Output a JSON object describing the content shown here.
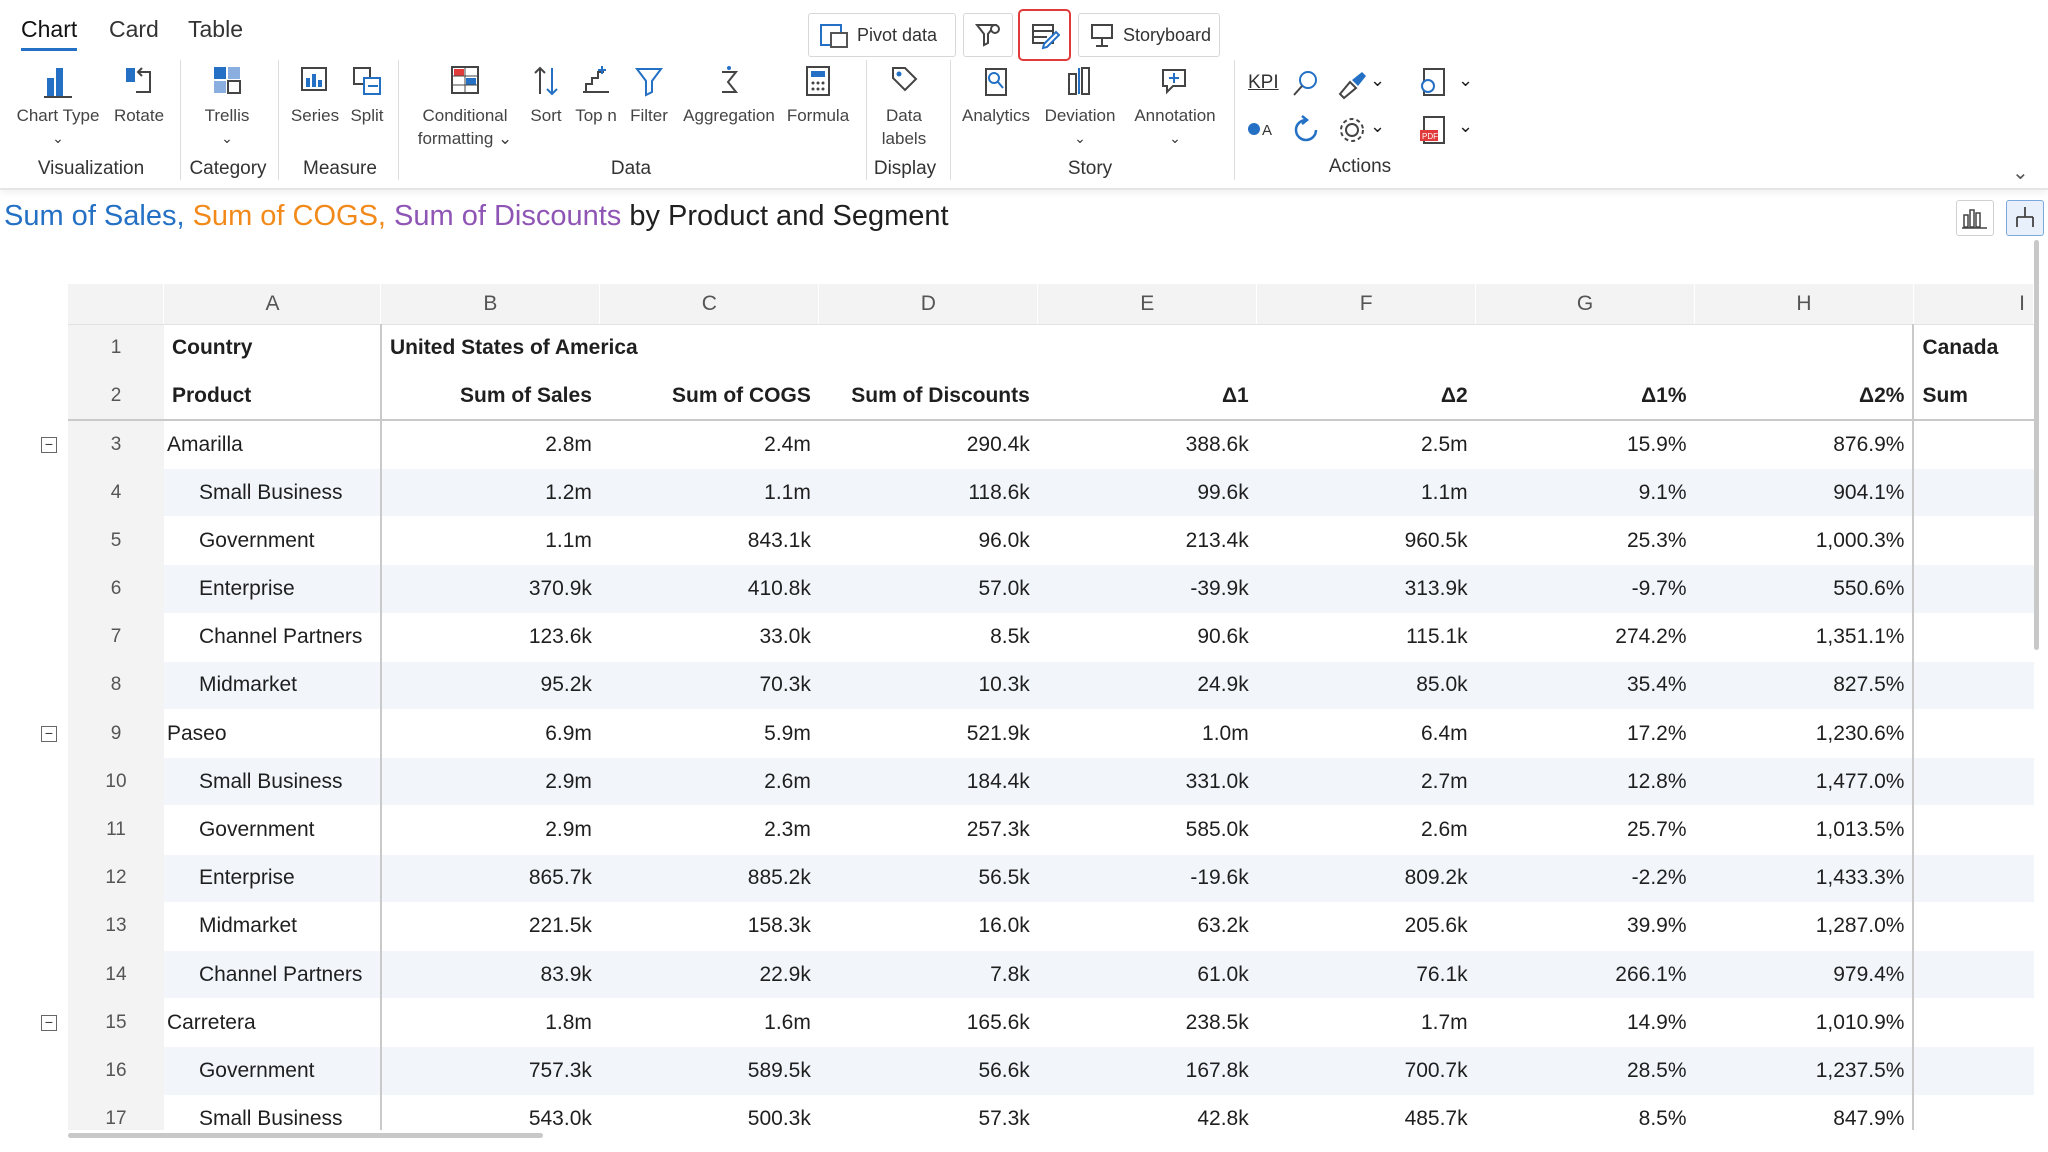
{
  "tabs": [
    "Chart",
    "Card",
    "Table"
  ],
  "toolbar": {
    "pivot_label": "Pivot data",
    "storyboard_label": "Storyboard"
  },
  "ribbon": {
    "visualization": {
      "chart_type": "Chart Type",
      "rotate": "Rotate",
      "label": "Visualization"
    },
    "category": {
      "trellis": "Trellis",
      "label": "Category"
    },
    "measure": {
      "series": "Series",
      "split": "Split",
      "label": "Measure"
    },
    "data": {
      "conditional_1": "Conditional",
      "conditional_2": "formatting",
      "sort": "Sort",
      "topn": "Top n",
      "filter": "Filter",
      "aggregation": "Aggregation",
      "formula": "Formula",
      "label": "Data"
    },
    "display": {
      "labels_1": "Data",
      "labels_2": "labels",
      "label": "Display"
    },
    "story": {
      "analytics": "Analytics",
      "deviation": "Deviation",
      "annotation": "Annotation",
      "label": "Story"
    },
    "actions": {
      "kpi": "KPI",
      "label": "Actions"
    }
  },
  "title": {
    "part1": "Sum of Sales,",
    "part2": "Sum of COGS,",
    "part3": "Sum of Discounts",
    "part4": "by Product and Segment",
    "color1": "#2470c4",
    "color2": "#f28a1b",
    "color3": "#8f55b5"
  },
  "grid": {
    "columns": [
      "A",
      "B",
      "C",
      "D",
      "E",
      "F",
      "G",
      "H",
      "I"
    ],
    "row1": {
      "num": "1",
      "label": "Country",
      "usa": "United States of America",
      "canada": "Canada"
    },
    "row2": {
      "num": "2",
      "product": "Product",
      "sales": "Sum of  Sales",
      "cogs": "Sum of COGS",
      "discounts": "Sum of Discounts",
      "d1": "Δ1",
      "d2": "Δ2",
      "d1p": "Δ1%",
      "d2p": "Δ2%",
      "i": "Sum"
    },
    "rows": [
      {
        "num": "3",
        "name": "Amarilla",
        "level": 0,
        "b": "2.8m",
        "c": "2.4m",
        "d": "290.4k",
        "e": "388.6k",
        "f": "2.5m",
        "g": "15.9%",
        "h": "876.9%"
      },
      {
        "num": "4",
        "name": "Small Business",
        "level": 1,
        "b": "1.2m",
        "c": "1.1m",
        "d": "118.6k",
        "e": "99.6k",
        "f": "1.1m",
        "g": "9.1%",
        "h": "904.1%"
      },
      {
        "num": "5",
        "name": "Government",
        "level": 1,
        "b": "1.1m",
        "c": "843.1k",
        "d": "96.0k",
        "e": "213.4k",
        "f": "960.5k",
        "g": "25.3%",
        "h": "1,000.3%"
      },
      {
        "num": "6",
        "name": "Enterprise",
        "level": 1,
        "b": "370.9k",
        "c": "410.8k",
        "d": "57.0k",
        "e": "-39.9k",
        "f": "313.9k",
        "g": "-9.7%",
        "h": "550.6%"
      },
      {
        "num": "7",
        "name": "Channel Partners",
        "level": 1,
        "b": "123.6k",
        "c": "33.0k",
        "d": "8.5k",
        "e": "90.6k",
        "f": "115.1k",
        "g": "274.2%",
        "h": "1,351.1%"
      },
      {
        "num": "8",
        "name": "Midmarket",
        "level": 1,
        "b": "95.2k",
        "c": "70.3k",
        "d": "10.3k",
        "e": "24.9k",
        "f": "85.0k",
        "g": "35.4%",
        "h": "827.5%"
      },
      {
        "num": "9",
        "name": "Paseo",
        "level": 0,
        "b": "6.9m",
        "c": "5.9m",
        "d": "521.9k",
        "e": "1.0m",
        "f": "6.4m",
        "g": "17.2%",
        "h": "1,230.6%"
      },
      {
        "num": "10",
        "name": "Small Business",
        "level": 1,
        "b": "2.9m",
        "c": "2.6m",
        "d": "184.4k",
        "e": "331.0k",
        "f": "2.7m",
        "g": "12.8%",
        "h": "1,477.0%"
      },
      {
        "num": "11",
        "name": "Government",
        "level": 1,
        "b": "2.9m",
        "c": "2.3m",
        "d": "257.3k",
        "e": "585.0k",
        "f": "2.6m",
        "g": "25.7%",
        "h": "1,013.5%"
      },
      {
        "num": "12",
        "name": "Enterprise",
        "level": 1,
        "b": "865.7k",
        "c": "885.2k",
        "d": "56.5k",
        "e": "-19.6k",
        "f": "809.2k",
        "g": "-2.2%",
        "h": "1,433.3%"
      },
      {
        "num": "13",
        "name": "Midmarket",
        "level": 1,
        "b": "221.5k",
        "c": "158.3k",
        "d": "16.0k",
        "e": "63.2k",
        "f": "205.6k",
        "g": "39.9%",
        "h": "1,287.0%"
      },
      {
        "num": "14",
        "name": "Channel Partners",
        "level": 1,
        "b": "83.9k",
        "c": "22.9k",
        "d": "7.8k",
        "e": "61.0k",
        "f": "76.1k",
        "g": "266.1%",
        "h": "979.4%"
      },
      {
        "num": "15",
        "name": "Carretera",
        "level": 0,
        "b": "1.8m",
        "c": "1.6m",
        "d": "165.6k",
        "e": "238.5k",
        "f": "1.7m",
        "g": "14.9%",
        "h": "1,010.9%"
      },
      {
        "num": "16",
        "name": "Government",
        "level": 1,
        "b": "757.3k",
        "c": "589.5k",
        "d": "56.6k",
        "e": "167.8k",
        "f": "700.7k",
        "g": "28.5%",
        "h": "1,237.5%"
      },
      {
        "num": "17",
        "name": "Small Business",
        "level": 1,
        "b": "543.0k",
        "c": "500.3k",
        "d": "57.3k",
        "e": "42.8k",
        "f": "485.7k",
        "g": "8.5%",
        "h": "847.9%"
      }
    ]
  }
}
